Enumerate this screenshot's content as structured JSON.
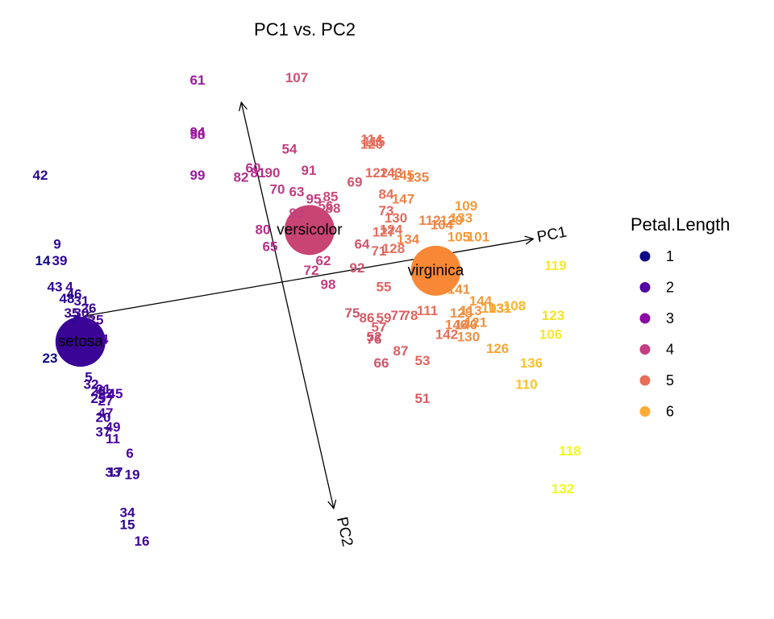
{
  "chart_data": {
    "type": "scatter",
    "title": "PC1 vs. PC2",
    "xlabel": "",
    "ylabel": "",
    "grid": false,
    "legend_position": "right",
    "color_scale": {
      "title": "Petal.Length",
      "breaks": [
        "1",
        "2",
        "3",
        "4",
        "5",
        "6"
      ],
      "colors": [
        "#0d0887",
        "#5402a3",
        "#8b0aa5",
        "#c33d80",
        "#e76f5a",
        "#fdab34"
      ]
    },
    "loadings": [
      {
        "label": "PC1",
        "x": 10.38,
        "y": 1.82
      },
      {
        "label": "PC2",
        "x": 2.13,
        "y": -9.52
      },
      {
        "label": "",
        "x": -8.14,
        "y": -1.42
      },
      {
        "label": "",
        "x": -1.69,
        "y": 7.56
      }
    ],
    "centroids": [
      {
        "label": "setosa",
        "x": -8.34,
        "y": -2.51,
        "color": "#3a0596"
      },
      {
        "label": "versicolor",
        "x": 1.13,
        "y": 2.19,
        "color": "#c74473"
      },
      {
        "label": "virginica",
        "x": 6.35,
        "y": 0.48,
        "color": "#f88836"
      }
    ],
    "points": [
      {
        "label": "61",
        "x": -3.5,
        "y": 8.5,
        "c": "#9a1a9e"
      },
      {
        "label": "107",
        "x": 0.6,
        "y": 8.6,
        "c": "#cf4f70"
      },
      {
        "label": "94",
        "x": -3.5,
        "y": 6.3,
        "c": "#9a1a9e"
      },
      {
        "label": "58",
        "x": -3.5,
        "y": 6.2,
        "c": "#9a1a9e"
      },
      {
        "label": "42",
        "x": -10.0,
        "y": 4.5,
        "c": "#2b0590"
      },
      {
        "label": "99",
        "x": -3.5,
        "y": 4.5,
        "c": "#9a1a9e"
      },
      {
        "label": "54",
        "x": 0.3,
        "y": 5.6,
        "c": "#c33d80"
      },
      {
        "label": "60",
        "x": -1.2,
        "y": 4.8,
        "c": "#b42f8c"
      },
      {
        "label": "82",
        "x": -1.7,
        "y": 4.4,
        "c": "#b42f8c"
      },
      {
        "label": "81",
        "x": -1.0,
        "y": 4.6,
        "c": "#b42f8c"
      },
      {
        "label": "90",
        "x": -0.4,
        "y": 4.6,
        "c": "#b93a84"
      },
      {
        "label": "91",
        "x": 1.1,
        "y": 4.7,
        "c": "#c33d80"
      },
      {
        "label": "70",
        "x": -0.2,
        "y": 3.9,
        "c": "#bd3a85"
      },
      {
        "label": "63",
        "x": 0.6,
        "y": 3.8,
        "c": "#c33d80"
      },
      {
        "label": "95",
        "x": 1.3,
        "y": 3.5,
        "c": "#c33d80"
      },
      {
        "label": "85",
        "x": 2.0,
        "y": 3.6,
        "c": "#c94a76"
      },
      {
        "label": "69",
        "x": 3.0,
        "y": 4.2,
        "c": "#d0546b"
      },
      {
        "label": "114",
        "x": 3.7,
        "y": 6.0,
        "c": "#e56d5c"
      },
      {
        "label": "115",
        "x": 3.8,
        "y": 5.9,
        "c": "#e56d5c"
      },
      {
        "label": "120",
        "x": 3.7,
        "y": 5.8,
        "c": "#e56d5c"
      },
      {
        "label": "122",
        "x": 3.9,
        "y": 4.6,
        "c": "#e56d5c"
      },
      {
        "label": "143",
        "x": 4.5,
        "y": 4.6,
        "c": "#e56d5c"
      },
      {
        "label": "145",
        "x": 5.0,
        "y": 4.5,
        "c": "#ee8447"
      },
      {
        "label": "135",
        "x": 5.6,
        "y": 4.4,
        "c": "#ee8447"
      },
      {
        "label": "84",
        "x": 4.3,
        "y": 3.7,
        "c": "#e56d5c"
      },
      {
        "label": "147",
        "x": 5.0,
        "y": 3.5,
        "c": "#ee8447"
      },
      {
        "label": "109",
        "x": 7.6,
        "y": 3.2,
        "c": "#f59a3a"
      },
      {
        "label": "73",
        "x": 4.3,
        "y": 3.0,
        "c": "#e06561"
      },
      {
        "label": "130",
        "x": 4.7,
        "y": 2.7,
        "c": "#e56d5c"
      },
      {
        "label": "112",
        "x": 6.1,
        "y": 2.6,
        "c": "#ee8447"
      },
      {
        "label": "129",
        "x": 7.0,
        "y": 2.6,
        "c": "#f2903f"
      },
      {
        "label": "133",
        "x": 7.4,
        "y": 2.7,
        "c": "#f59a3a"
      },
      {
        "label": "104",
        "x": 6.6,
        "y": 2.4,
        "c": "#ee8447"
      },
      {
        "label": "93",
        "x": 0.6,
        "y": 2.9,
        "c": "#c33d80"
      },
      {
        "label": "88",
        "x": 2.1,
        "y": 3.1,
        "c": "#c94a76"
      },
      {
        "label": "56",
        "x": 1.8,
        "y": 3.2,
        "c": "#c94a76"
      },
      {
        "label": "80",
        "x": -0.8,
        "y": 2.2,
        "c": "#b42f8c"
      },
      {
        "label": "124",
        "x": 4.5,
        "y": 2.2,
        "c": "#e56d5c"
      },
      {
        "label": "127",
        "x": 4.2,
        "y": 2.1,
        "c": "#e56d5c"
      },
      {
        "label": "134",
        "x": 5.2,
        "y": 1.8,
        "c": "#ee8447"
      },
      {
        "label": "128",
        "x": 4.6,
        "y": 1.4,
        "c": "#e56d5c"
      },
      {
        "label": "65",
        "x": -0.5,
        "y": 1.5,
        "c": "#b42f8c"
      },
      {
        "label": "71",
        "x": 4.0,
        "y": 1.3,
        "c": "#e06561"
      },
      {
        "label": "64",
        "x": 3.3,
        "y": 1.6,
        "c": "#d0546b"
      },
      {
        "label": "62",
        "x": 1.7,
        "y": 0.9,
        "c": "#c33d80"
      },
      {
        "label": "72",
        "x": 1.2,
        "y": 0.5,
        "c": "#c33d80"
      },
      {
        "label": "92",
        "x": 3.1,
        "y": 0.6,
        "c": "#d0546b"
      },
      {
        "label": "98",
        "x": 1.9,
        "y": -0.1,
        "c": "#c33d80"
      },
      {
        "label": "55",
        "x": 4.2,
        "y": -0.2,
        "c": "#e06561"
      },
      {
        "label": "105",
        "x": 7.3,
        "y": 1.9,
        "c": "#f59a3a"
      },
      {
        "label": "101",
        "x": 8.1,
        "y": 1.9,
        "c": "#f59a3a"
      },
      {
        "label": "119",
        "x": 11.3,
        "y": 0.7,
        "c": "#f6e834"
      },
      {
        "label": "75",
        "x": 2.9,
        "y": -1.3,
        "c": "#d0546b"
      },
      {
        "label": "86",
        "x": 3.5,
        "y": -1.5,
        "c": "#d95b65"
      },
      {
        "label": "59",
        "x": 4.2,
        "y": -1.5,
        "c": "#dc5e63"
      },
      {
        "label": "77",
        "x": 4.8,
        "y": -1.4,
        "c": "#dc5e63"
      },
      {
        "label": "78",
        "x": 5.3,
        "y": -1.4,
        "c": "#e06561"
      },
      {
        "label": "111",
        "x": 6.0,
        "y": -1.2,
        "c": "#e56d5c"
      },
      {
        "label": "57",
        "x": 4.0,
        "y": -1.9,
        "c": "#dc5e63"
      },
      {
        "label": "52",
        "x": 3.8,
        "y": -2.3,
        "c": "#d0546b"
      },
      {
        "label": "76",
        "x": 3.8,
        "y": -2.4,
        "c": "#d0546b"
      },
      {
        "label": "87",
        "x": 4.9,
        "y": -2.9,
        "c": "#dc5e63"
      },
      {
        "label": "66",
        "x": 4.1,
        "y": -3.4,
        "c": "#d0546b"
      },
      {
        "label": "53",
        "x": 5.8,
        "y": -3.3,
        "c": "#e06561"
      },
      {
        "label": "51",
        "x": 5.8,
        "y": -4.9,
        "c": "#d95b65"
      },
      {
        "label": "142",
        "x": 6.8,
        "y": -2.2,
        "c": "#e56d5c"
      },
      {
        "label": "146",
        "x": 7.2,
        "y": -1.8,
        "c": "#ee8447"
      },
      {
        "label": "140",
        "x": 7.6,
        "y": -1.8,
        "c": "#ee8447"
      },
      {
        "label": "121",
        "x": 8.0,
        "y": -1.7,
        "c": "#f2903f"
      },
      {
        "label": "125",
        "x": 7.4,
        "y": -1.3,
        "c": "#f2903f"
      },
      {
        "label": "113",
        "x": 7.8,
        "y": -1.2,
        "c": "#f2903f"
      },
      {
        "label": "144",
        "x": 8.2,
        "y": -0.8,
        "c": "#f59a3a"
      },
      {
        "label": "103",
        "x": 8.7,
        "y": -1.1,
        "c": "#f9a532"
      },
      {
        "label": "131",
        "x": 9.0,
        "y": -1.1,
        "c": "#f9a532"
      },
      {
        "label": "108",
        "x": 9.6,
        "y": -1.0,
        "c": "#fbb630"
      },
      {
        "label": "141",
        "x": 7.3,
        "y": -0.3,
        "c": "#f2903f"
      },
      {
        "label": "130b",
        "x": 7.7,
        "y": -2.3,
        "c": "#f2903f"
      },
      {
        "label": "126",
        "x": 8.9,
        "y": -2.8,
        "c": "#f9a532"
      },
      {
        "label": "123",
        "x": 11.2,
        "y": -1.4,
        "c": "#f2e22c"
      },
      {
        "label": "106",
        "x": 11.1,
        "y": -2.2,
        "c": "#f6e834"
      },
      {
        "label": "136",
        "x": 10.3,
        "y": -3.4,
        "c": "#fbc32a"
      },
      {
        "label": "110",
        "x": 10.1,
        "y": -4.3,
        "c": "#fbc32a"
      },
      {
        "label": "118",
        "x": 11.9,
        "y": -7.1,
        "c": "#f0f921"
      },
      {
        "label": "132",
        "x": 11.6,
        "y": -8.7,
        "c": "#f0f921"
      },
      {
        "label": "9",
        "x": -9.3,
        "y": 1.6,
        "c": "#2b0590"
      },
      {
        "label": "14",
        "x": -9.9,
        "y": 0.9,
        "c": "#0d0887"
      },
      {
        "label": "39",
        "x": -9.2,
        "y": 0.9,
        "c": "#2b0590"
      },
      {
        "label": "43",
        "x": -9.4,
        "y": -0.2,
        "c": "#2b0590"
      },
      {
        "label": "4",
        "x": -8.8,
        "y": -0.2,
        "c": "#3a0596"
      },
      {
        "label": "48",
        "x": -8.9,
        "y": -0.7,
        "c": "#2b0590"
      },
      {
        "label": "46",
        "x": -8.6,
        "y": -0.5,
        "c": "#2b0590"
      },
      {
        "label": "31",
        "x": -8.3,
        "y": -0.8,
        "c": "#3a0596"
      },
      {
        "label": "26",
        "x": -8.0,
        "y": -1.1,
        "c": "#3a0596"
      },
      {
        "label": "35",
        "x": -8.7,
        "y": -1.3,
        "c": "#3a0596"
      },
      {
        "label": "30",
        "x": -8.3,
        "y": -1.3,
        "c": "#3a0596"
      },
      {
        "label": "7",
        "x": -8.6,
        "y": -1.6,
        "c": "#2b0590"
      },
      {
        "label": "25",
        "x": -7.7,
        "y": -1.6,
        "c": "#4a03a0"
      },
      {
        "label": "12",
        "x": -8.3,
        "y": -2.0,
        "c": "#3a0596"
      },
      {
        "label": "3",
        "x": -8.9,
        "y": -2.5,
        "c": "#2b0590"
      },
      {
        "label": "24",
        "x": -7.5,
        "y": -2.4,
        "c": "#4a03a0"
      },
      {
        "label": "23",
        "x": -9.6,
        "y": -3.2,
        "c": "#0d0887"
      },
      {
        "label": "5",
        "x": -8.0,
        "y": -4.0,
        "c": "#2b0590"
      },
      {
        "label": "32",
        "x": -7.9,
        "y": -4.3,
        "c": "#3a0596"
      },
      {
        "label": "21",
        "x": -7.4,
        "y": -4.5,
        "c": "#4a03a0"
      },
      {
        "label": "28",
        "x": -7.6,
        "y": -4.6,
        "c": "#3a0596"
      },
      {
        "label": "22",
        "x": -7.3,
        "y": -4.7,
        "c": "#3a0596"
      },
      {
        "label": "45",
        "x": -6.9,
        "y": -4.7,
        "c": "#4a03a0"
      },
      {
        "label": "29",
        "x": -7.6,
        "y": -4.9,
        "c": "#3a0596"
      },
      {
        "label": "27",
        "x": -7.3,
        "y": -5.0,
        "c": "#4a03a0"
      },
      {
        "label": "47",
        "x": -7.3,
        "y": -5.5,
        "c": "#4a03a0"
      },
      {
        "label": "20",
        "x": -7.4,
        "y": -5.7,
        "c": "#3a0596"
      },
      {
        "label": "49",
        "x": -7.0,
        "y": -6.1,
        "c": "#4a03a0"
      },
      {
        "label": "37",
        "x": -7.4,
        "y": -6.3,
        "c": "#3a0596"
      },
      {
        "label": "11",
        "x": -7.0,
        "y": -6.6,
        "c": "#4a03a0"
      },
      {
        "label": "6",
        "x": -6.3,
        "y": -7.2,
        "c": "#4a03a0"
      },
      {
        "label": "33",
        "x": -7.0,
        "y": -8.0,
        "c": "#3a0596"
      },
      {
        "label": "17",
        "x": -6.9,
        "y": -8.0,
        "c": "#2b0590"
      },
      {
        "label": "19",
        "x": -6.2,
        "y": -8.1,
        "c": "#3a0596"
      },
      {
        "label": "34",
        "x": -6.4,
        "y": -9.7,
        "c": "#3a0596"
      },
      {
        "label": "15",
        "x": -6.4,
        "y": -10.2,
        "c": "#2b0590"
      },
      {
        "label": "16",
        "x": -5.8,
        "y": -10.9,
        "c": "#3a0596"
      }
    ]
  }
}
